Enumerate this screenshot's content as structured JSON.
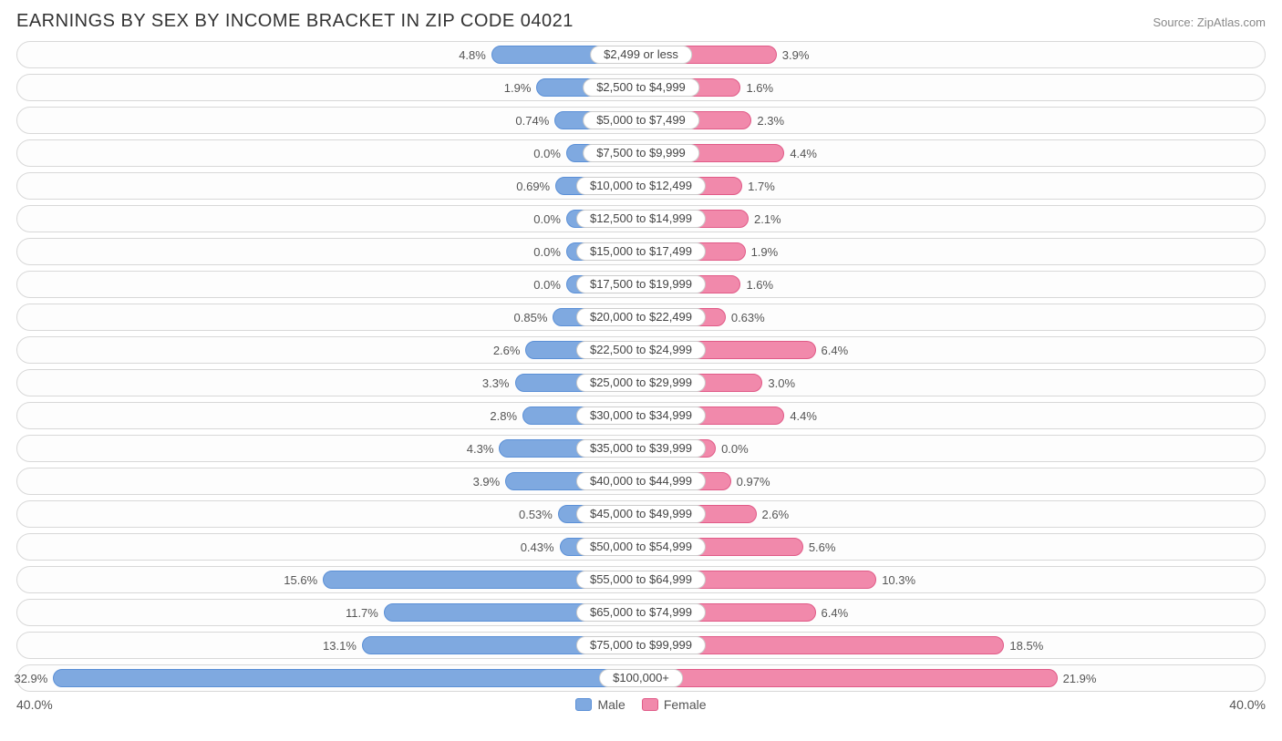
{
  "title": "EARNINGS BY SEX BY INCOME BRACKET IN ZIP CODE 04021",
  "source": "Source: ZipAtlas.com",
  "chart": {
    "type": "diverging-bar",
    "axis_max": 40.0,
    "axis_left_label": "40.0%",
    "axis_right_label": "40.0%",
    "male_color": "#7fa9e0",
    "male_border": "#5a8fd6",
    "female_color": "#f189ab",
    "female_border": "#e05a87",
    "label_bg": "#ffffff",
    "label_border": "#cccccc",
    "track_border": "#d8d8d8",
    "track_bg": "#fdfdfd",
    "text_color": "#555555",
    "label_fontsize": 13,
    "legend": {
      "male": "Male",
      "female": "Female"
    },
    "rows": [
      {
        "label": "$2,499 or less",
        "male": 4.8,
        "male_text": "4.8%",
        "female": 3.9,
        "female_text": "3.9%"
      },
      {
        "label": "$2,500 to $4,999",
        "male": 1.9,
        "male_text": "1.9%",
        "female": 1.6,
        "female_text": "1.6%"
      },
      {
        "label": "$5,000 to $7,499",
        "male": 0.74,
        "male_text": "0.74%",
        "female": 2.3,
        "female_text": "2.3%"
      },
      {
        "label": "$7,500 to $9,999",
        "male": 0.0,
        "male_text": "0.0%",
        "female": 4.4,
        "female_text": "4.4%"
      },
      {
        "label": "$10,000 to $12,499",
        "male": 0.69,
        "male_text": "0.69%",
        "female": 1.7,
        "female_text": "1.7%"
      },
      {
        "label": "$12,500 to $14,999",
        "male": 0.0,
        "male_text": "0.0%",
        "female": 2.1,
        "female_text": "2.1%"
      },
      {
        "label": "$15,000 to $17,499",
        "male": 0.0,
        "male_text": "0.0%",
        "female": 1.9,
        "female_text": "1.9%"
      },
      {
        "label": "$17,500 to $19,999",
        "male": 0.0,
        "male_text": "0.0%",
        "female": 1.6,
        "female_text": "1.6%"
      },
      {
        "label": "$20,000 to $22,499",
        "male": 0.85,
        "male_text": "0.85%",
        "female": 0.63,
        "female_text": "0.63%"
      },
      {
        "label": "$22,500 to $24,999",
        "male": 2.6,
        "male_text": "2.6%",
        "female": 6.4,
        "female_text": "6.4%"
      },
      {
        "label": "$25,000 to $29,999",
        "male": 3.3,
        "male_text": "3.3%",
        "female": 3.0,
        "female_text": "3.0%"
      },
      {
        "label": "$30,000 to $34,999",
        "male": 2.8,
        "male_text": "2.8%",
        "female": 4.4,
        "female_text": "4.4%"
      },
      {
        "label": "$35,000 to $39,999",
        "male": 4.3,
        "male_text": "4.3%",
        "female": 0.0,
        "female_text": "0.0%"
      },
      {
        "label": "$40,000 to $44,999",
        "male": 3.9,
        "male_text": "3.9%",
        "female": 0.97,
        "female_text": "0.97%"
      },
      {
        "label": "$45,000 to $49,999",
        "male": 0.53,
        "male_text": "0.53%",
        "female": 2.6,
        "female_text": "2.6%"
      },
      {
        "label": "$50,000 to $54,999",
        "male": 0.43,
        "male_text": "0.43%",
        "female": 5.6,
        "female_text": "5.6%"
      },
      {
        "label": "$55,000 to $64,999",
        "male": 15.6,
        "male_text": "15.6%",
        "female": 10.3,
        "female_text": "10.3%"
      },
      {
        "label": "$65,000 to $74,999",
        "male": 11.7,
        "male_text": "11.7%",
        "female": 6.4,
        "female_text": "6.4%"
      },
      {
        "label": "$75,000 to $99,999",
        "male": 13.1,
        "male_text": "13.1%",
        "female": 18.5,
        "female_text": "18.5%"
      },
      {
        "label": "$100,000+",
        "male": 32.9,
        "male_text": "32.9%",
        "female": 21.9,
        "female_text": "21.9%"
      }
    ]
  }
}
